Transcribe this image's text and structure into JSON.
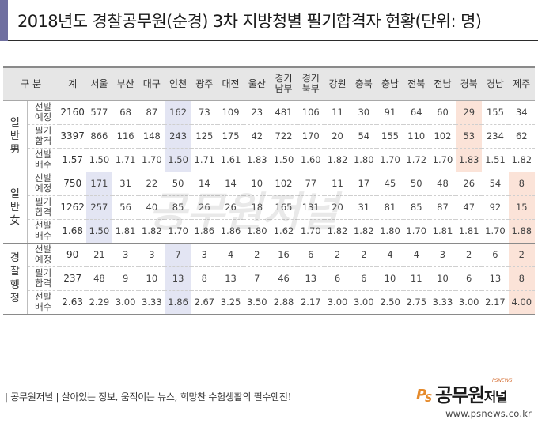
{
  "title": "2018년도 경찰공무원(순경) 3차 지방청별 필기합격자 현황(단위: 명)",
  "header": {
    "category": "구 분",
    "columns": [
      "계",
      "서울",
      "부산",
      "대구",
      "인천",
      "광주",
      "대전",
      "울산",
      "경기\n남부",
      "경기\n북부",
      "강원",
      "충북",
      "충남",
      "전북",
      "전남",
      "경북",
      "경남",
      "제주"
    ]
  },
  "groups": [
    {
      "name": "일\n반\n男",
      "rows": [
        {
          "label": "선발\n예정",
          "values": [
            "2160",
            "577",
            "68",
            "87",
            "162",
            "73",
            "109",
            "23",
            "481",
            "106",
            "11",
            "30",
            "91",
            "64",
            "60",
            "29",
            "155",
            "34"
          ]
        },
        {
          "label": "필기\n합격",
          "values": [
            "3397",
            "866",
            "116",
            "148",
            "243",
            "125",
            "175",
            "42",
            "722",
            "170",
            "20",
            "54",
            "155",
            "110",
            "102",
            "53",
            "234",
            "62"
          ]
        },
        {
          "label": "선발\n배수",
          "values": [
            "1.57",
            "1.50",
            "1.71",
            "1.70",
            "1.50",
            "1.71",
            "1.61",
            "1.83",
            "1.50",
            "1.60",
            "1.82",
            "1.80",
            "1.70",
            "1.72",
            "1.70",
            "1.83",
            "1.51",
            "1.82"
          ]
        }
      ]
    },
    {
      "name": "일\n반\n女",
      "rows": [
        {
          "label": "선발\n예정",
          "values": [
            "750",
            "171",
            "31",
            "22",
            "50",
            "14",
            "14",
            "10",
            "102",
            "77",
            "11",
            "17",
            "45",
            "50",
            "48",
            "26",
            "54",
            "8"
          ]
        },
        {
          "label": "필기\n합격",
          "values": [
            "1262",
            "257",
            "56",
            "40",
            "85",
            "26",
            "26",
            "18",
            "165",
            "131",
            "20",
            "31",
            "81",
            "85",
            "87",
            "47",
            "92",
            "15"
          ]
        },
        {
          "label": "선발\n배수",
          "values": [
            "1.68",
            "1.50",
            "1.81",
            "1.82",
            "1.70",
            "1.86",
            "1.86",
            "1.80",
            "1.62",
            "1.70",
            "1.82",
            "1.82",
            "1.80",
            "1.70",
            "1.81",
            "1.81",
            "1.70",
            "1.88"
          ]
        }
      ]
    },
    {
      "name": "경\n찰\n행\n정",
      "rows": [
        {
          "label": "선발\n예정",
          "values": [
            "90",
            "21",
            "3",
            "3",
            "7",
            "3",
            "4",
            "2",
            "16",
            "6",
            "2",
            "2",
            "4",
            "4",
            "3",
            "2",
            "6",
            "2"
          ]
        },
        {
          "label": "필기\n합격",
          "values": [
            "237",
            "48",
            "9",
            "10",
            "13",
            "8",
            "13",
            "7",
            "46",
            "13",
            "6",
            "6",
            "10",
            "11",
            "10",
            "6",
            "13",
            "8"
          ]
        },
        {
          "label": "선발\n배수",
          "values": [
            "2.63",
            "2.29",
            "3.00",
            "3.33",
            "1.86",
            "2.67",
            "3.25",
            "3.50",
            "2.88",
            "2.17",
            "3.00",
            "3.00",
            "2.50",
            "2.75",
            "3.33",
            "3.00",
            "2.17",
            "4.00"
          ]
        }
      ]
    }
  ],
  "highlights": {
    "blue": "#e3e5f3",
    "peach": "#fbe3d8",
    "cells": [
      {
        "group": 0,
        "row": 0,
        "col": 4,
        "color": "blue"
      },
      {
        "group": 0,
        "row": 1,
        "col": 4,
        "color": "blue"
      },
      {
        "group": 0,
        "row": 2,
        "col": 4,
        "color": "blue"
      },
      {
        "group": 0,
        "row": 0,
        "col": 15,
        "color": "peach"
      },
      {
        "group": 0,
        "row": 1,
        "col": 15,
        "color": "peach"
      },
      {
        "group": 0,
        "row": 2,
        "col": 15,
        "color": "peach"
      },
      {
        "group": 1,
        "row": 0,
        "col": 1,
        "color": "blue"
      },
      {
        "group": 1,
        "row": 1,
        "col": 1,
        "color": "blue"
      },
      {
        "group": 1,
        "row": 2,
        "col": 1,
        "color": "blue"
      },
      {
        "group": 1,
        "row": 0,
        "col": 17,
        "color": "peach"
      },
      {
        "group": 1,
        "row": 1,
        "col": 17,
        "color": "peach"
      },
      {
        "group": 1,
        "row": 2,
        "col": 17,
        "color": "peach"
      },
      {
        "group": 2,
        "row": 0,
        "col": 4,
        "color": "blue"
      },
      {
        "group": 2,
        "row": 1,
        "col": 4,
        "color": "blue"
      },
      {
        "group": 2,
        "row": 2,
        "col": 4,
        "color": "blue"
      },
      {
        "group": 2,
        "row": 0,
        "col": 17,
        "color": "peach"
      },
      {
        "group": 2,
        "row": 1,
        "col": 17,
        "color": "peach"
      },
      {
        "group": 2,
        "row": 2,
        "col": 17,
        "color": "peach"
      }
    ]
  },
  "footer": {
    "tagline": "| 공무원저널 |  살아있는 정보, 움직이는 뉴스, 희망찬 수험생활의 필수엔진!",
    "logo_brand": "공무원",
    "logo_brand_small": "저널",
    "logo_top": "PSNEWS",
    "url": "www.psnews.co.kr"
  },
  "watermark": "공무원저널"
}
